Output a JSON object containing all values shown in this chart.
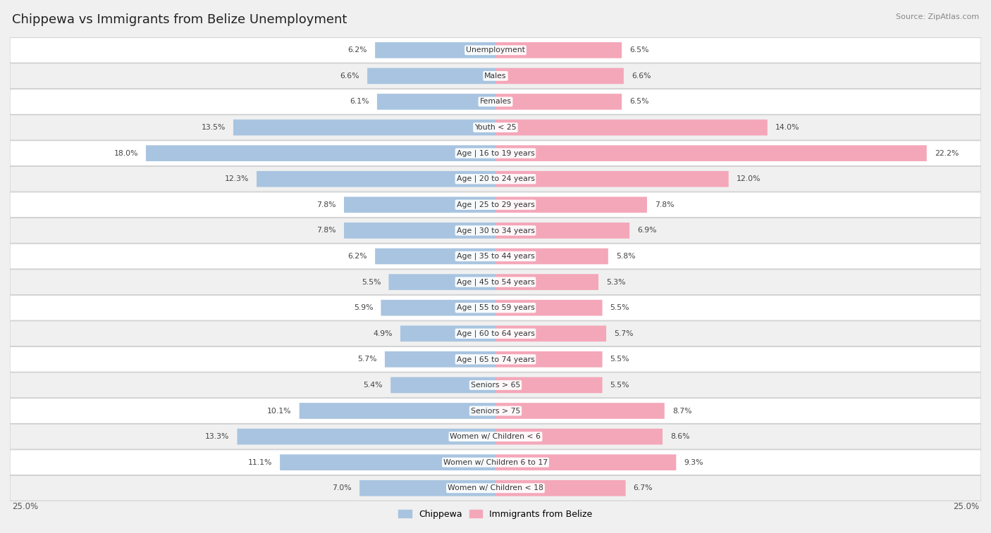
{
  "title": "Chippewa vs Immigrants from Belize Unemployment",
  "source": "Source: ZipAtlas.com",
  "categories": [
    "Unemployment",
    "Males",
    "Females",
    "Youth < 25",
    "Age | 16 to 19 years",
    "Age | 20 to 24 years",
    "Age | 25 to 29 years",
    "Age | 30 to 34 years",
    "Age | 35 to 44 years",
    "Age | 45 to 54 years",
    "Age | 55 to 59 years",
    "Age | 60 to 64 years",
    "Age | 65 to 74 years",
    "Seniors > 65",
    "Seniors > 75",
    "Women w/ Children < 6",
    "Women w/ Children 6 to 17",
    "Women w/ Children < 18"
  ],
  "chippewa": [
    6.2,
    6.6,
    6.1,
    13.5,
    18.0,
    12.3,
    7.8,
    7.8,
    6.2,
    5.5,
    5.9,
    4.9,
    5.7,
    5.4,
    10.1,
    13.3,
    11.1,
    7.0
  ],
  "belize": [
    6.5,
    6.6,
    6.5,
    14.0,
    22.2,
    12.0,
    7.8,
    6.9,
    5.8,
    5.3,
    5.5,
    5.7,
    5.5,
    5.5,
    8.7,
    8.6,
    9.3,
    6.7
  ],
  "blue_color": "#a8c4e0",
  "pink_color": "#f4a7b9",
  "bg_color": "#f0f0f0",
  "row_bg_white": "#ffffff",
  "row_bg_gray": "#f0f0f0",
  "axis_max": 25.0,
  "legend_chippewa": "Chippewa",
  "legend_belize": "Immigrants from Belize"
}
